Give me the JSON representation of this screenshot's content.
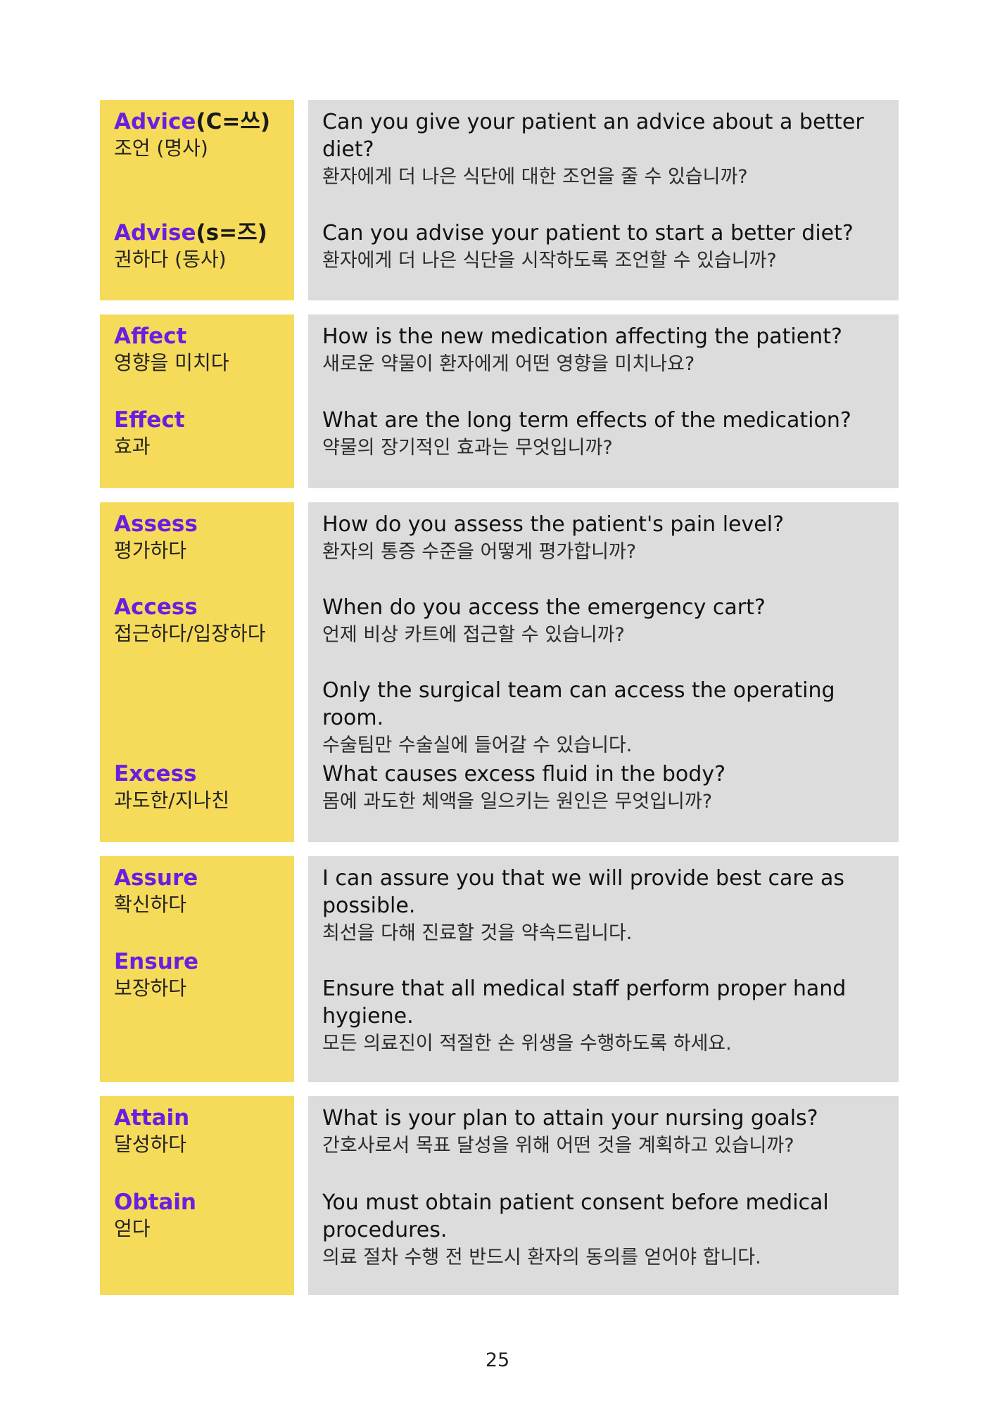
{
  "sections": [
    {
      "terms": [
        {
          "en": "Advice",
          "note": "(C=쓰)",
          "ko": "조언 (명사)"
        },
        {
          "en": "Advise",
          "note": "(s=즈)",
          "ko": "권하다 (동사)"
        }
      ],
      "examples": [
        {
          "en": "Can you give your patient an advice about a better diet?",
          "ko": "환자에게 더 나은 식단에 대한 조언을 줄 수 있습니까?"
        },
        {
          "en": "Can you advise your patient to start a better diet?",
          "ko": "환자에게 더 나은 식단을 시작하도록 조언할 수 있습니까?"
        }
      ]
    },
    {
      "terms": [
        {
          "en": "Affect",
          "ko": "영향을 미치다"
        },
        {
          "en": "Effect",
          "ko": "효과"
        }
      ],
      "examples": [
        {
          "en": "How is the new medication affecting the patient?",
          "ko": "새로운 약물이 환자에게 어떤 영향을 미치나요?"
        },
        {
          "en": "What are the long term effects of the medication?",
          "ko": "약물의 장기적인 효과는 무엇입니까?"
        }
      ]
    },
    {
      "terms": [
        {
          "en": "Assess",
          "ko": "평가하다"
        },
        {
          "en": "Access",
          "ko": "접근하다/입장하다"
        },
        {
          "en": "Excess",
          "ko": "과도한/지나친"
        }
      ],
      "examples": [
        {
          "en": "How do you assess the patient's pain level?",
          "ko": "환자의 통증 수준을 어떻게 평가합니까?"
        },
        {
          "en": "When do you access the emergency cart?",
          "ko": "언제 비상 카트에 접근할 수 있습니까?"
        },
        {
          "en": "Only the surgical team can access the operating room.",
          "ko": "수술팀만 수술실에 들어갈 수 있습니다."
        },
        {
          "en": "What causes excess fluid in the body?",
          "ko": "몸에 과도한 체액을 일으키는 원인은 무엇입니까?"
        }
      ]
    },
    {
      "terms": [
        {
          "en": "Assure",
          "ko": "확신하다"
        },
        {
          "en": "Ensure",
          "ko": "보장하다"
        }
      ],
      "examples": [
        {
          "en": "I can assure you that we will provide best care as possible.",
          "ko": "최선을 다해 진료할 것을 약속드립니다."
        },
        {
          "en": "Ensure that all medical staff perform proper hand hygiene.",
          "ko": "모든 의료진이 적절한 손 위생을 수행하도록 하세요."
        }
      ]
    },
    {
      "terms": [
        {
          "en": "Attain",
          "ko": "달성하다"
        },
        {
          "en": "Obtain",
          "ko": "얻다"
        }
      ],
      "examples": [
        {
          "en": "What is your plan to attain your nursing goals?",
          "ko": "간호사로서 목표 달성을 위해 어떤 것을 계획하고 있습니까?"
        },
        {
          "en": "You must obtain patient consent before medical procedures.",
          "ko": "의료 절차 수행 전 반드시 환자의 동의를 얻어야 합니다."
        }
      ]
    }
  ],
  "page_number": "25",
  "colors": {
    "term_bg": "#f6db5b",
    "example_bg": "#dcdcdc",
    "term_accent": "#6a1fe0"
  }
}
